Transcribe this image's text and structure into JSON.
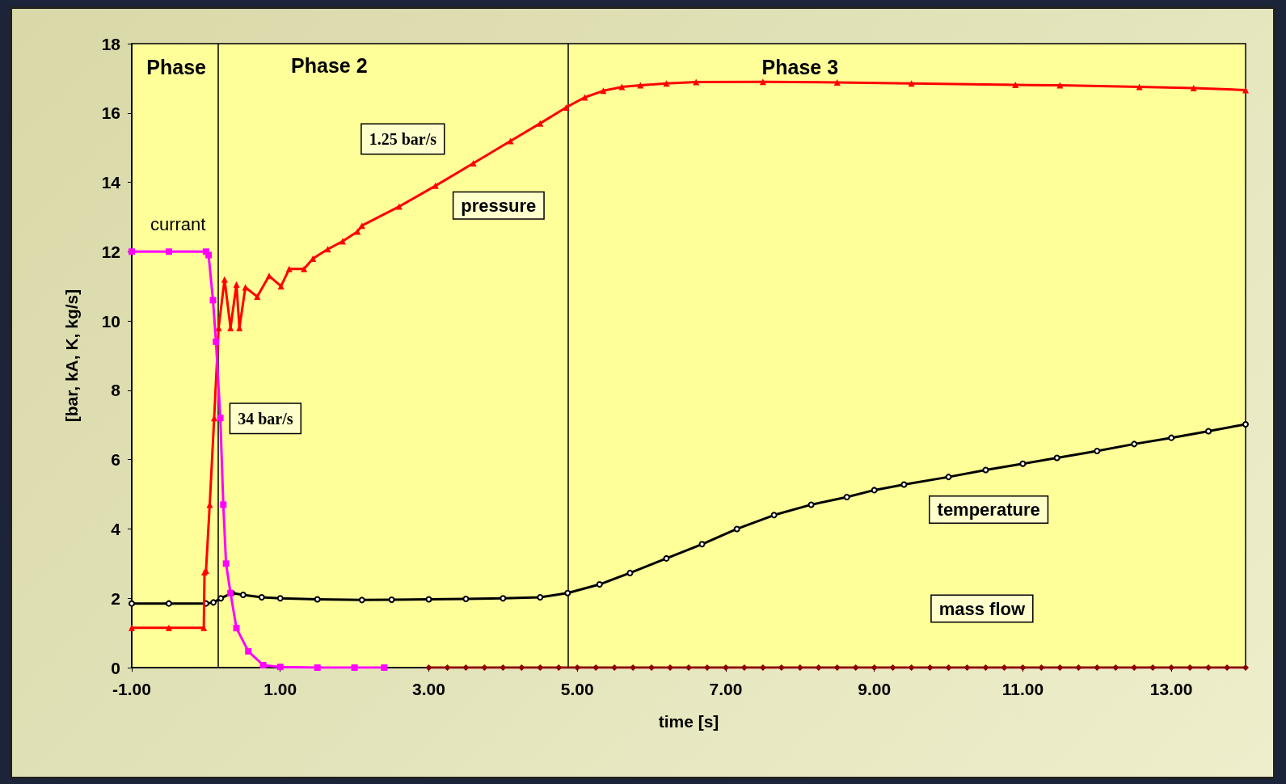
{
  "chart_data": {
    "type": "line",
    "xlabel": "time [s]",
    "ylabel": "[bar, kA, K, kg/s]",
    "xlim": [
      -1,
      14
    ],
    "ylim": [
      0,
      18
    ],
    "xticks": [
      {
        "value": -1,
        "label": "-1.00"
      },
      {
        "value": 1,
        "label": "1.00"
      },
      {
        "value": 3,
        "label": "3.00"
      },
      {
        "value": 5,
        "label": "5.00"
      },
      {
        "value": 7,
        "label": "7.00"
      },
      {
        "value": 9,
        "label": "9.00"
      },
      {
        "value": 11,
        "label": "11.00"
      },
      {
        "value": 13,
        "label": "13.00"
      }
    ],
    "yticks": [
      0,
      2,
      4,
      6,
      8,
      10,
      12,
      14,
      16,
      18
    ],
    "grid": false,
    "legend": false,
    "series": [
      {
        "name": "currant",
        "color": "#ff00ff",
        "marker": "square",
        "x": [
          -1,
          -0.5,
          0.0,
          0.035,
          0.094,
          0.134,
          0.193,
          0.233,
          0.27,
          0.33,
          0.41,
          0.57,
          0.77,
          1.0,
          1.5,
          2.0,
          2.4
        ],
        "values": [
          12,
          12,
          12,
          11.9,
          10.6,
          9.4,
          7.2,
          4.7,
          3.0,
          2.15,
          1.14,
          0.47,
          0.07,
          0.02,
          0,
          0,
          0
        ]
      },
      {
        "name": "pressure",
        "color": "#ff0000",
        "marker": "triangle",
        "x": [
          -1,
          -0.5,
          -0.03,
          -0.02,
          0.0,
          0.05,
          0.11,
          0.17,
          0.25,
          0.33,
          0.41,
          0.45,
          0.53,
          0.69,
          0.85,
          1.01,
          1.12,
          1.32,
          1.44,
          1.64,
          1.84,
          2.04,
          2.1,
          2.6,
          3.09,
          3.6,
          4.1,
          4.5,
          4.85,
          5.1,
          5.35,
          5.6,
          5.85,
          6.2,
          6.6,
          7.5,
          8.5,
          9.5,
          10.9,
          11.5,
          12.57,
          13.3,
          14
        ],
        "values": [
          1.15,
          1.15,
          1.15,
          2.75,
          2.8,
          4.7,
          7.2,
          9.8,
          11.2,
          9.8,
          11.05,
          9.8,
          10.97,
          10.7,
          11.3,
          11.0,
          11.5,
          11.5,
          11.8,
          12.07,
          12.3,
          12.58,
          12.75,
          13.3,
          13.9,
          14.55,
          15.19,
          15.7,
          16.16,
          16.45,
          16.64,
          16.75,
          16.8,
          16.85,
          16.89,
          16.9,
          16.88,
          16.85,
          16.81,
          16.8,
          16.75,
          16.72,
          16.66
        ]
      },
      {
        "name": "temperature",
        "color": "#000000",
        "marker": "circle",
        "x": [
          -1,
          -0.5,
          0,
          0.1,
          0.2,
          0.35,
          0.5,
          0.75,
          1.0,
          1.5,
          2.1,
          2.5,
          3.0,
          3.5,
          4.0,
          4.5,
          4.87,
          5.3,
          5.71,
          6.2,
          6.68,
          7.15,
          7.65,
          8.15,
          8.63,
          9.0,
          9.4,
          10.0,
          10.5,
          11.0,
          11.46,
          12.0,
          12.5,
          13.0,
          13.5,
          14.0
        ],
        "values": [
          1.85,
          1.85,
          1.85,
          1.88,
          2.0,
          2.15,
          2.1,
          2.03,
          2.0,
          1.97,
          1.95,
          1.96,
          1.97,
          1.98,
          2.0,
          2.03,
          2.15,
          2.4,
          2.73,
          3.15,
          3.56,
          4.0,
          4.4,
          4.7,
          4.92,
          5.12,
          5.28,
          5.5,
          5.7,
          5.88,
          6.05,
          6.25,
          6.45,
          6.63,
          6.82,
          7.02
        ]
      },
      {
        "name": "mass flow",
        "color": "#8b0000",
        "marker": "diamond",
        "x": [
          3,
          3.25,
          3.5,
          3.75,
          4,
          4.25,
          4.5,
          4.75,
          5,
          5.25,
          5.5,
          5.75,
          6,
          6.25,
          6.5,
          6.75,
          7,
          7.25,
          7.5,
          7.75,
          8,
          8.25,
          8.5,
          8.75,
          9,
          9.25,
          9.5,
          9.75,
          10,
          10.25,
          10.5,
          10.75,
          11,
          11.25,
          11.5,
          11.75,
          12,
          12.25,
          12.5,
          12.75,
          13,
          13.25,
          13.5,
          13.75,
          14
        ],
        "values": [
          0,
          0,
          0,
          0,
          0,
          0,
          0,
          0,
          0,
          0,
          0,
          0,
          0,
          0,
          0,
          0,
          0,
          0,
          0,
          0,
          0,
          0,
          0,
          0,
          0,
          0,
          0,
          0,
          0,
          0,
          0,
          0,
          0,
          0,
          0,
          0,
          0,
          0,
          0,
          0,
          0,
          0,
          0,
          0,
          0
        ]
      }
    ],
    "ref_lines": [
      {
        "axis": "x",
        "value": 0.16,
        "color": "#000000"
      },
      {
        "axis": "x",
        "value": 4.87,
        "color": "#000000"
      }
    ],
    "annotations": [
      "Phase",
      "Phase 2",
      "Phase 3",
      "1.25 bar/s",
      "34 bar/s"
    ]
  }
}
